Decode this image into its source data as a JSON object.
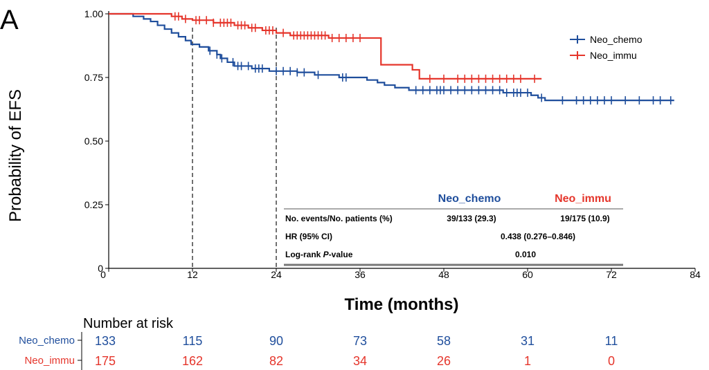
{
  "panel_label": "A",
  "colors": {
    "chemo": "#1f4e9c",
    "immu": "#e5352b",
    "axis": "#000000",
    "dash": "#333333"
  },
  "chart_data": {
    "type": "line",
    "subtype": "kaplan-meier",
    "xlabel": "Time (months)",
    "ylabel": "Probability of EFS",
    "xlim": [
      0,
      84
    ],
    "ylim": [
      0,
      1
    ],
    "x_ticks": [
      0,
      12,
      24,
      36,
      48,
      60,
      72,
      84
    ],
    "y_ticks": [
      "0",
      "0.25",
      "0.50",
      "0.75",
      "1.00"
    ],
    "y_tick_values": [
      0,
      0.25,
      0.5,
      0.75,
      1.0
    ],
    "reference_lines_x": [
      12,
      24
    ],
    "legend_position": "top-right",
    "series": [
      {
        "name": "Neo_chemo",
        "color": "#1f4e9c",
        "steps": [
          [
            0,
            1.0
          ],
          [
            3.5,
            0.99
          ],
          [
            5,
            0.98
          ],
          [
            6,
            0.97
          ],
          [
            7,
            0.955
          ],
          [
            8,
            0.94
          ],
          [
            9,
            0.925
          ],
          [
            10,
            0.91
          ],
          [
            11,
            0.895
          ],
          [
            11.8,
            0.88
          ],
          [
            13,
            0.87
          ],
          [
            14.3,
            0.855
          ],
          [
            15.5,
            0.84
          ],
          [
            16,
            0.825
          ],
          [
            17,
            0.81
          ],
          [
            18,
            0.795
          ],
          [
            20.5,
            0.785
          ],
          [
            23,
            0.775
          ],
          [
            27,
            0.77
          ],
          [
            29.5,
            0.76
          ],
          [
            33,
            0.75
          ],
          [
            37,
            0.74
          ],
          [
            38.5,
            0.73
          ],
          [
            39.5,
            0.72
          ],
          [
            41,
            0.71
          ],
          [
            43,
            0.7
          ],
          [
            56.5,
            0.69
          ],
          [
            60.5,
            0.68
          ],
          [
            61.5,
            0.67
          ],
          [
            62.5,
            0.66
          ]
        ],
        "end": 81,
        "censor": [
          14.5,
          15.5,
          16.2,
          17.8,
          18.5,
          19,
          20,
          21,
          21.5,
          22,
          24,
          25,
          26,
          27,
          28,
          30,
          33.5,
          34,
          44,
          45,
          46,
          47,
          47.5,
          48,
          49,
          50,
          51,
          52,
          53,
          54,
          55,
          56,
          57,
          58,
          58.5,
          59,
          60,
          62,
          65,
          67,
          68,
          69,
          70,
          71,
          72,
          74,
          76,
          78,
          79,
          80.5
        ]
      },
      {
        "name": "Neo_immu",
        "color": "#e5352b",
        "steps": [
          [
            0,
            1.0
          ],
          [
            9,
            0.99
          ],
          [
            10.5,
            0.98
          ],
          [
            12,
            0.975
          ],
          [
            15,
            0.965
          ],
          [
            18,
            0.955
          ],
          [
            20,
            0.945
          ],
          [
            22,
            0.935
          ],
          [
            24,
            0.925
          ],
          [
            26,
            0.915
          ],
          [
            31.5,
            0.905
          ],
          [
            39,
            0.8
          ],
          [
            43.5,
            0.78
          ],
          [
            44.5,
            0.745
          ]
        ],
        "end": 62,
        "censor": [
          9.5,
          10,
          11,
          12.5,
          13,
          14,
          15,
          16,
          16.5,
          17,
          17.5,
          18.5,
          19,
          19.5,
          20.5,
          21,
          22.5,
          23,
          23.5,
          25,
          26.5,
          27,
          27.5,
          28,
          28.5,
          29,
          29.5,
          30,
          30.5,
          31,
          32,
          33,
          34,
          35,
          36,
          46,
          48,
          50,
          51,
          52,
          53,
          54,
          55,
          56,
          57,
          58,
          59,
          61
        ]
      }
    ]
  },
  "stats_table": {
    "headers": [
      "",
      "Neo_chemo",
      "Neo_immu"
    ],
    "rows": [
      {
        "label": "No. events/No. patients (%)",
        "chemo": "39/133 (29.3)",
        "immu": "19/175 (10.9)"
      },
      {
        "label": "HR (95% CI)",
        "value": "0.438 (0.276–0.846)"
      },
      {
        "label_prefix": "Log-rank ",
        "label_italic": "P",
        "label_suffix": "-value",
        "value": "0.010"
      }
    ]
  },
  "risk_table": {
    "title": "Number at risk",
    "rows": [
      {
        "name": "Neo_chemo",
        "color": "#1f4e9c",
        "values": [
          "133",
          "115",
          "90",
          "73",
          "58",
          "31",
          "11"
        ]
      },
      {
        "name": "Neo_immu",
        "color": "#e5352b",
        "values": [
          "175",
          "162",
          "82",
          "34",
          "26",
          "1",
          "0"
        ]
      }
    ]
  }
}
